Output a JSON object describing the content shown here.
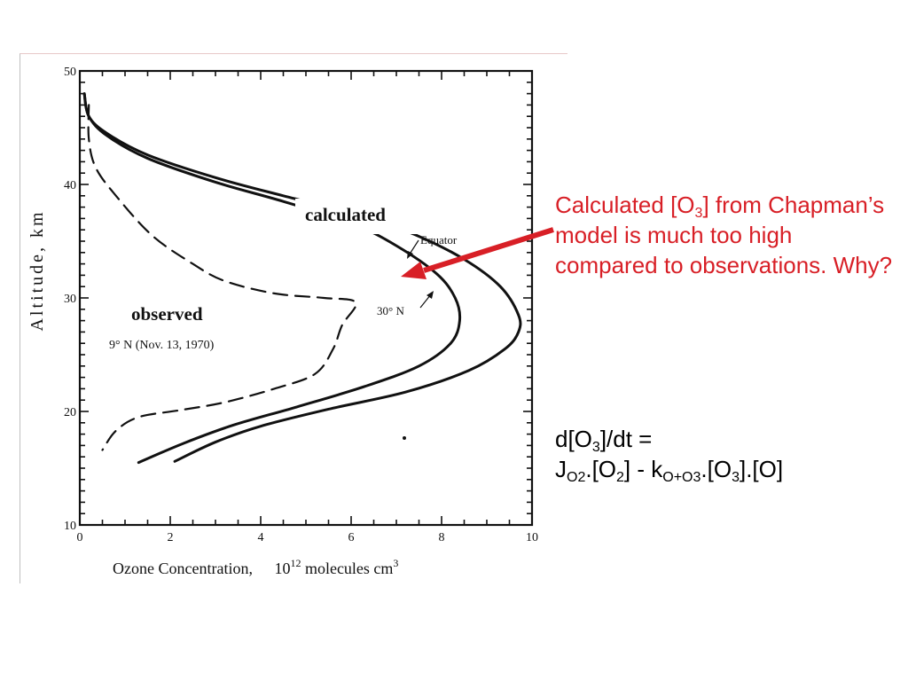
{
  "colors": {
    "annotation": "#d81f26",
    "curve": "#111111",
    "axis": "#111111"
  },
  "chart_data": {
    "type": "line",
    "xlabel": "Ozone Concentration,",
    "xlabel_unit": "10",
    "xlabel_unit_exp": "12",
    "xlabel_unit_tail": " molecules cm",
    "xlabel_unit_exp2": "3",
    "ylabel": "Altitude, km",
    "xlim": [
      0,
      10
    ],
    "ylim": [
      10,
      50
    ],
    "xticks": [
      0,
      2,
      4,
      6,
      8,
      10
    ],
    "yticks": [
      10,
      20,
      30,
      40,
      50
    ],
    "grid": false,
    "series": [
      {
        "name": "Equator",
        "style": "solid",
        "points": [
          [
            0.1,
            48
          ],
          [
            0.2,
            46
          ],
          [
            0.6,
            44.5
          ],
          [
            1.5,
            42.6
          ],
          [
            3,
            40.6
          ],
          [
            4.5,
            39
          ],
          [
            6.2,
            37.3
          ],
          [
            7.4,
            35.6
          ],
          [
            8.5,
            33.4
          ],
          [
            9.3,
            31
          ],
          [
            9.7,
            28.5
          ],
          [
            9.7,
            27
          ],
          [
            9.4,
            25.5
          ],
          [
            8.6,
            23.6
          ],
          [
            7.2,
            21.7
          ],
          [
            5.5,
            20.2
          ],
          [
            4,
            18.7
          ],
          [
            3,
            17.3
          ],
          [
            2.1,
            15.6
          ]
        ]
      },
      {
        "name": "30° N",
        "style": "solid",
        "points": [
          [
            0.1,
            48
          ],
          [
            0.2,
            46
          ],
          [
            0.6,
            44.3
          ],
          [
            1.5,
            42.3
          ],
          [
            3,
            40.2
          ],
          [
            4.5,
            38.5
          ],
          [
            6,
            36.6
          ],
          [
            7,
            34.6
          ],
          [
            7.9,
            32.1
          ],
          [
            8.3,
            30
          ],
          [
            8.4,
            28
          ],
          [
            8.2,
            26
          ],
          [
            7.5,
            24
          ],
          [
            6.3,
            22.2
          ],
          [
            4.8,
            20.4
          ],
          [
            3.4,
            18.8
          ],
          [
            2.3,
            17.2
          ],
          [
            1.3,
            15.5
          ]
        ]
      },
      {
        "name": "9° N (Nov. 13, 1970)",
        "style": "dashed",
        "points": [
          [
            0.2,
            47
          ],
          [
            0.2,
            44
          ],
          [
            0.35,
            41.5
          ],
          [
            0.8,
            39
          ],
          [
            1.6,
            35.5
          ],
          [
            2.5,
            33
          ],
          [
            3.2,
            31.5
          ],
          [
            4.3,
            30.4
          ],
          [
            5.4,
            30
          ],
          [
            6.1,
            29.6
          ],
          [
            5.8,
            27.6
          ],
          [
            5.6,
            25.5
          ],
          [
            5.2,
            23.3
          ],
          [
            4.3,
            22
          ],
          [
            3.2,
            20.8
          ],
          [
            2.2,
            20.1
          ],
          [
            1.3,
            19.5
          ],
          [
            0.8,
            18.3
          ],
          [
            0.5,
            16.6
          ]
        ]
      }
    ],
    "annotations": {
      "equator": "Equator",
      "thirty_n": "30° N",
      "nine_n": "9° N (Nov. 13, 1970)",
      "calculated": "calculated",
      "observed": "observed"
    }
  },
  "caption": {
    "text_a": "Calculated [O",
    "sub_a": "3",
    "text_b": "] from Chapman’s model is much too high compared to observations. Why?"
  },
  "equation": {
    "line1_a": "d[O",
    "line1_sub": "3",
    "line1_b": "]/dt =",
    "j": "J",
    "j_sub": "O2",
    "o2_a": ".[O",
    "o2_sub": "2",
    "o2_b": "] - k",
    "k_sub": "O+O3",
    "tail_a": ".[O",
    "tail_sub": "3",
    "tail_b": "].[O]"
  }
}
